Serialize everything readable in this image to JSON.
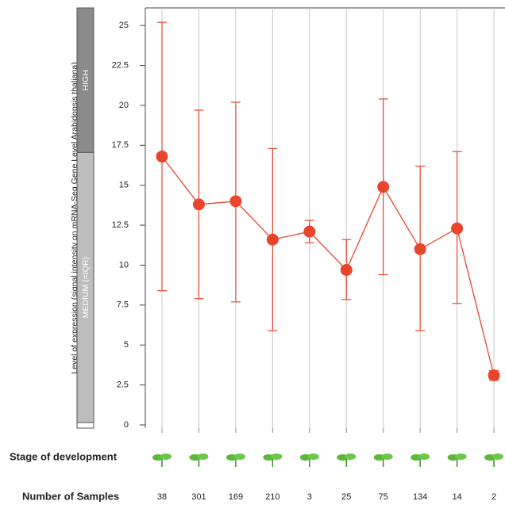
{
  "chart_data": {
    "type": "line",
    "y_label": "Level of expression (signal intensity on mRNA-Seq Gene Level Arabidopsis thaliana)",
    "categories": [
      null,
      null,
      null,
      null,
      null,
      null,
      null,
      null,
      null,
      null
    ],
    "series": [
      {
        "color": "#e8452c",
        "values": [
          16.8,
          13.8,
          14.0,
          11.6,
          12.1,
          9.7,
          14.9,
          11.0,
          12.3,
          3.1
        ],
        "error_low": [
          8.4,
          7.9,
          7.7,
          5.9,
          11.4,
          7.85,
          9.4,
          5.9,
          7.6,
          2.8
        ],
        "error_high": [
          25.2,
          19.7,
          20.2,
          17.3,
          12.8,
          11.6,
          20.4,
          16.2,
          17.1,
          3.4
        ]
      }
    ],
    "ylim": [
      -0.2,
      26.1
    ],
    "yticks": [
      0,
      2.5,
      5,
      7.5,
      10,
      12.5,
      15,
      17.5,
      20,
      22.5,
      25
    ],
    "grid": true,
    "levels": [
      {
        "label": "HIGH",
        "from": 17.05,
        "to": 26.1,
        "color": "#8a8a8a"
      },
      {
        "label": "MEDIUM (=IQR)",
        "from": 0.15,
        "to": 17.05,
        "color": "#bdbdbd"
      },
      {
        "from": -0.2,
        "to": 0.15,
        "color": "#ffffff"
      }
    ],
    "stage_label": "Stage of development",
    "samples_label": "Number of Samples",
    "sample_counts": [
      38,
      301,
      169,
      210,
      3,
      25,
      75,
      134,
      14,
      2
    ]
  }
}
